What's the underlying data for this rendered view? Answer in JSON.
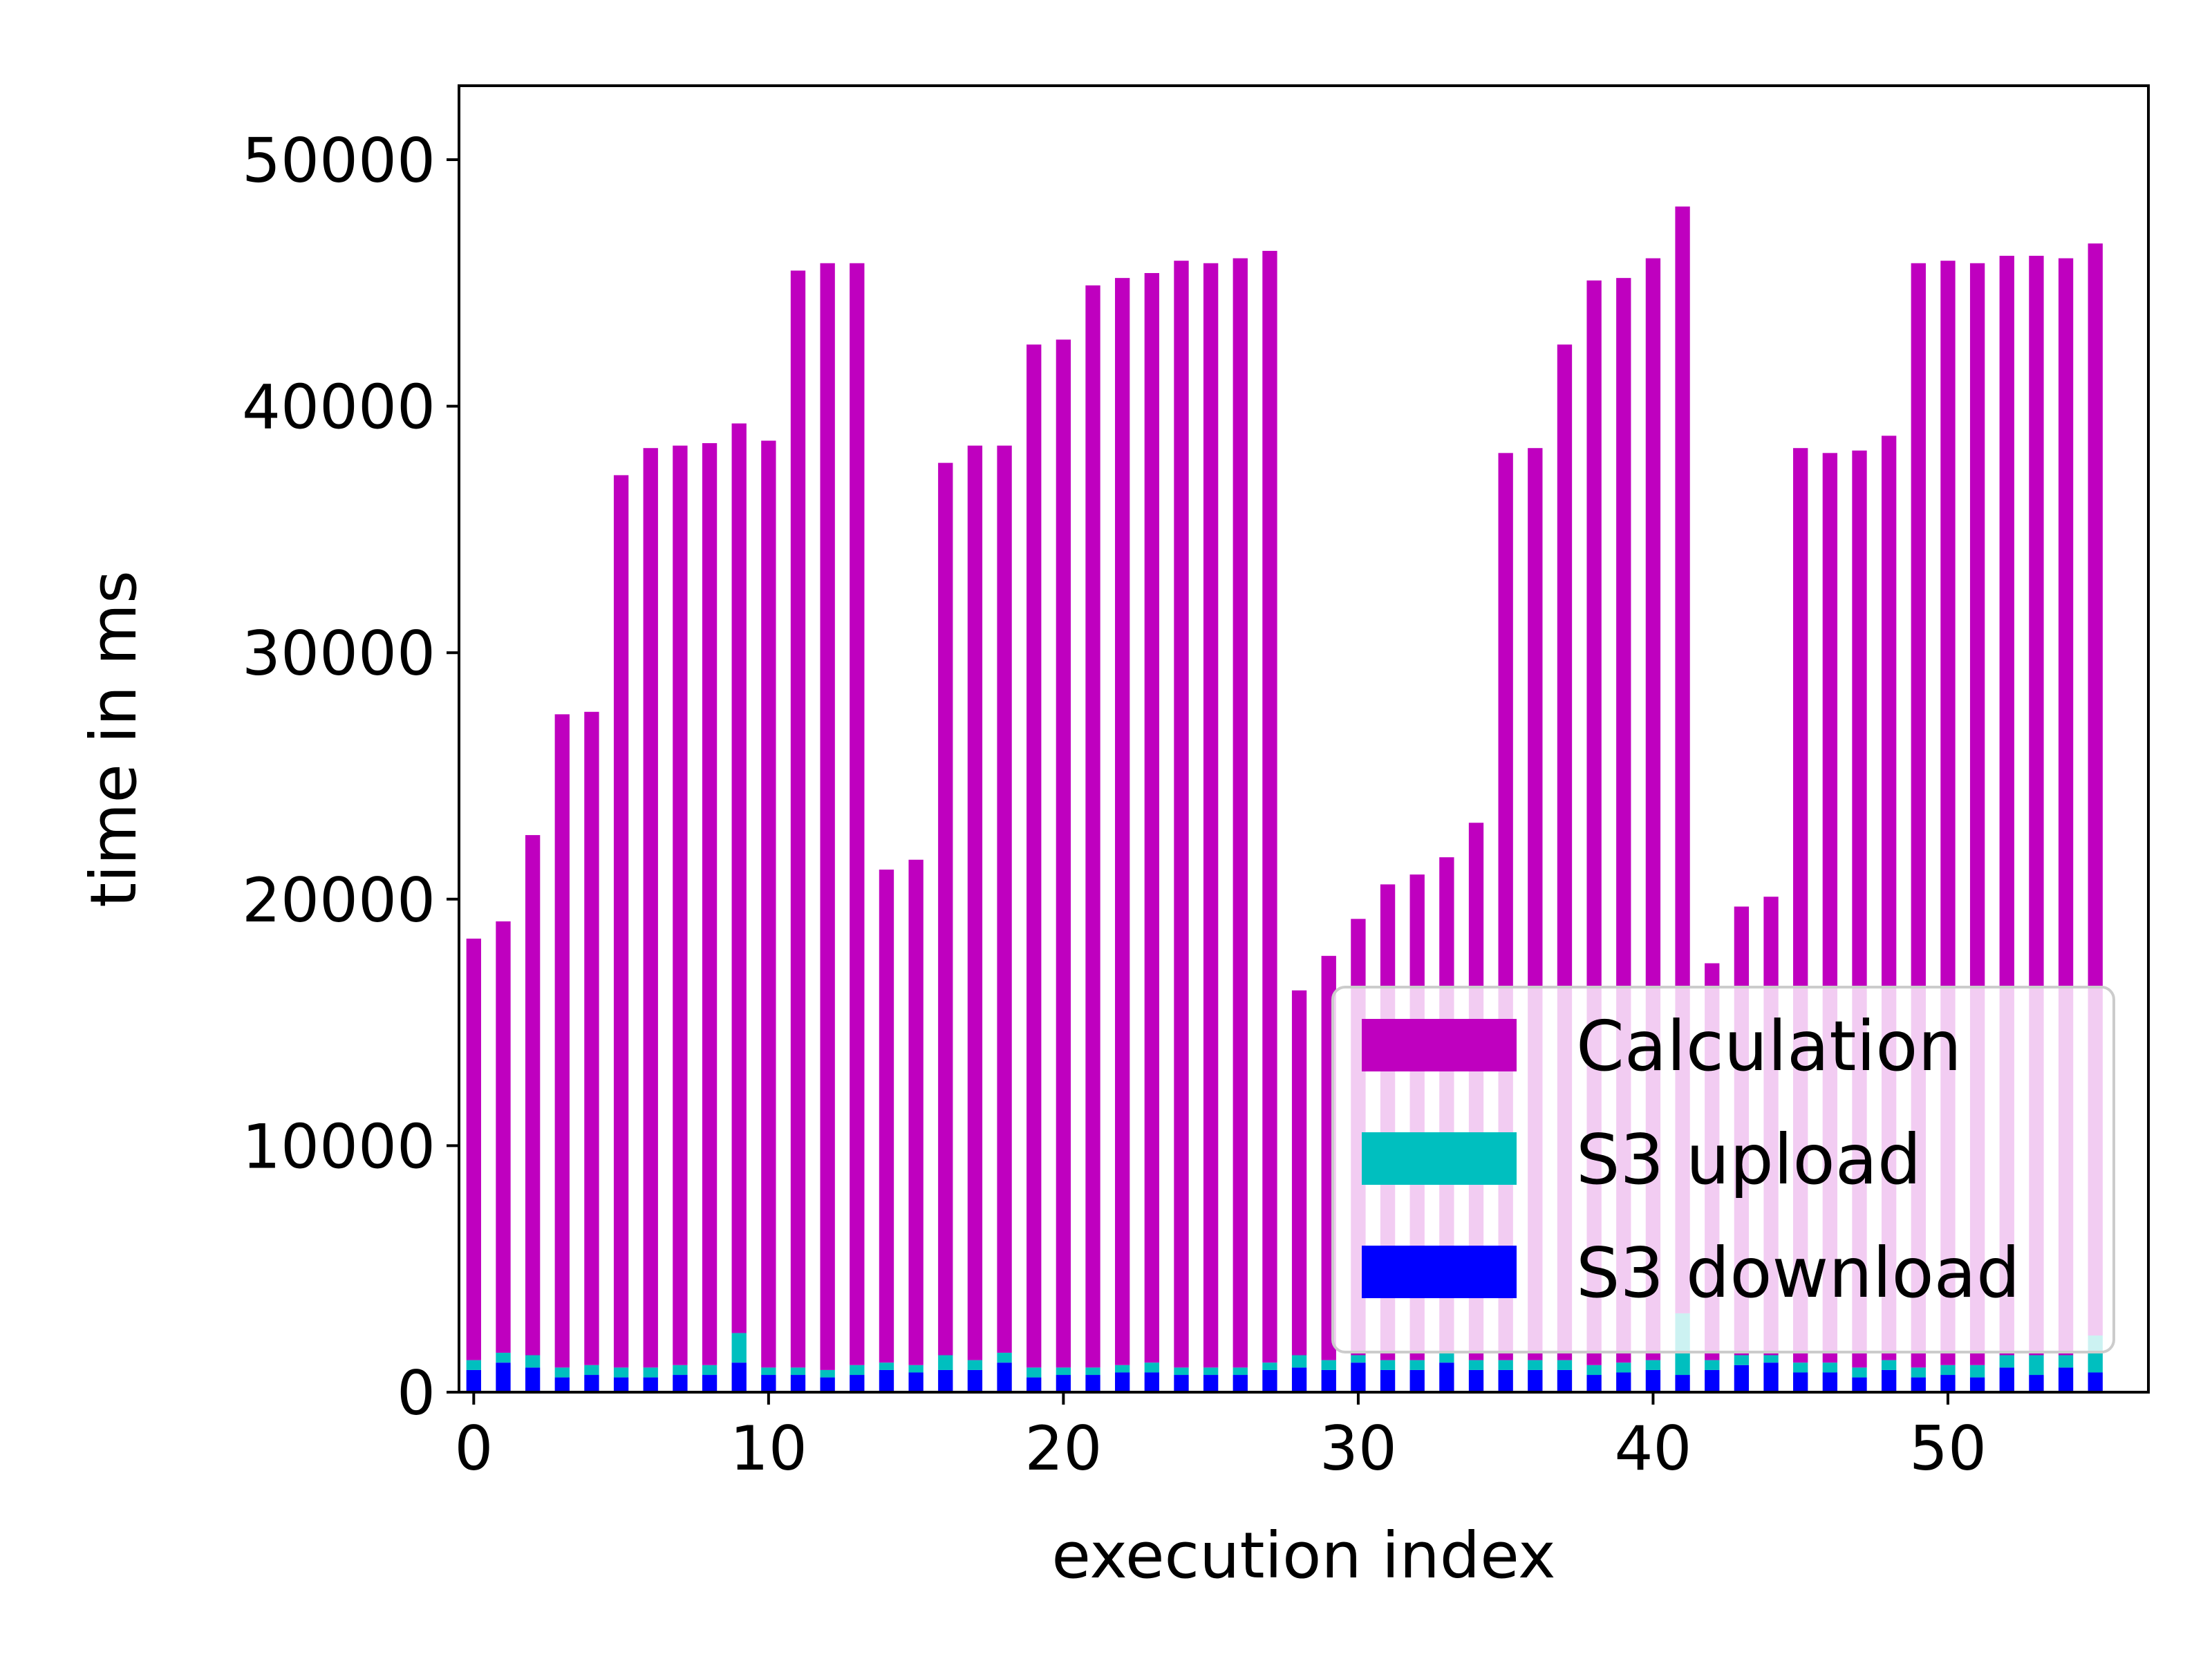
{
  "chart_data": {
    "type": "bar",
    "stacked": true,
    "xlabel": "execution index",
    "ylabel": "time in ms",
    "xlim": [
      -0.5,
      56.8
    ],
    "ylim": [
      0,
      53000
    ],
    "xticks": [
      0,
      10,
      20,
      30,
      40,
      50
    ],
    "yticks": [
      0,
      10000,
      20000,
      30000,
      40000,
      50000
    ],
    "grid": false,
    "legend_placement": "lower-right",
    "x": [
      0,
      1,
      2,
      3,
      4,
      5,
      6,
      7,
      8,
      9,
      10,
      11,
      12,
      13,
      14,
      15,
      16,
      17,
      18,
      19,
      20,
      21,
      22,
      23,
      24,
      25,
      26,
      27,
      28,
      29,
      30,
      31,
      32,
      33,
      34,
      35,
      36,
      37,
      38,
      39,
      40,
      41,
      42,
      43,
      44,
      45,
      46,
      47,
      48,
      49,
      50,
      51,
      52,
      53,
      54,
      55
    ],
    "series": [
      {
        "name": "S3 download",
        "color": "#0000ff",
        "values": [
          900,
          1200,
          1000,
          600,
          700,
          600,
          600,
          700,
          700,
          1200,
          700,
          700,
          600,
          700,
          900,
          800,
          900,
          900,
          1200,
          600,
          700,
          700,
          800,
          800,
          700,
          700,
          700,
          900,
          1000,
          900,
          1200,
          900,
          900,
          1200,
          900,
          900,
          900,
          900,
          700,
          800,
          900,
          700,
          900,
          1100,
          1200,
          800,
          800,
          600,
          900,
          600,
          700,
          600,
          1000,
          700,
          1000,
          800
        ]
      },
      {
        "name": "S3 upload",
        "color": "#00bfbf",
        "values": [
          400,
          400,
          500,
          400,
          400,
          400,
          400,
          400,
          400,
          1200,
          300,
          300,
          300,
          400,
          300,
          300,
          600,
          400,
          400,
          400,
          300,
          300,
          300,
          400,
          300,
          300,
          300,
          300,
          500,
          400,
          300,
          400,
          400,
          400,
          400,
          400,
          400,
          400,
          400,
          400,
          400,
          2500,
          400,
          400,
          300,
          400,
          400,
          400,
          400,
          400,
          400,
          500,
          500,
          800,
          500,
          1500
        ]
      },
      {
        "name": "Calculation",
        "color": "#bf00bf",
        "values": [
          17100,
          17500,
          21100,
          26500,
          26500,
          36200,
          37300,
          37300,
          37400,
          36900,
          37600,
          44500,
          44900,
          44700,
          20000,
          20500,
          36200,
          37100,
          36800,
          41500,
          41700,
          43900,
          44100,
          44200,
          44900,
          44800,
          45000,
          45100,
          14800,
          16400,
          17700,
          19300,
          19700,
          20100,
          21800,
          36800,
          37000,
          41200,
          44000,
          44000,
          44700,
          44900,
          16100,
          18200,
          18600,
          37100,
          36900,
          37200,
          37500,
          44800,
          44800,
          44700,
          44600,
          44600,
          44500,
          44300
        ]
      }
    ],
    "legend": [
      {
        "name": "Calculation",
        "color": "#bf00bf"
      },
      {
        "name": "S3 upload",
        "color": "#00bfbf"
      },
      {
        "name": "S3 download",
        "color": "#0000ff"
      }
    ]
  }
}
